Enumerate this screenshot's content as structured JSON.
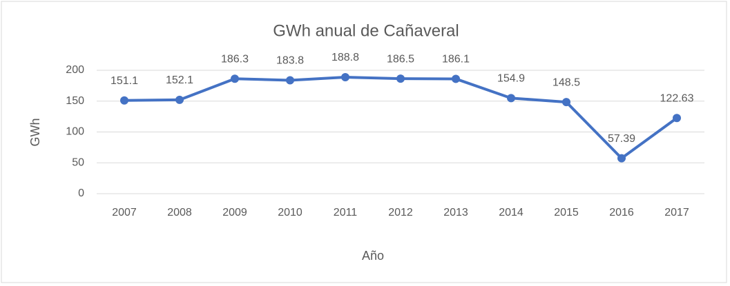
{
  "chart_data": {
    "type": "line",
    "title": "GWh anual de Cañaveral",
    "x_label": "Año",
    "y_label": "GWh",
    "categories": [
      "2007",
      "2008",
      "2009",
      "2010",
      "2011",
      "2012",
      "2013",
      "2014",
      "2015",
      "2016",
      "2017"
    ],
    "values": [
      151.1,
      152.1,
      186.3,
      183.8,
      188.8,
      186.5,
      186.1,
      154.9,
      148.5,
      57.39,
      122.63
    ],
    "color": "#4472c4",
    "ylim": [
      0,
      200
    ],
    "yticks": [
      0,
      50,
      100,
      150,
      200
    ],
    "grid": true
  }
}
